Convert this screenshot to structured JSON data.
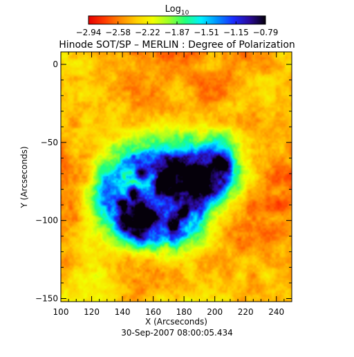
{
  "chart_data": {
    "type": "heatmap",
    "title": "Hinode SOT/SP – MERLIN : Degree of Polarization",
    "xlabel": "X (Arcseconds)",
    "ylabel": "Y (Arcseconds)",
    "xlim": [
      100,
      250
    ],
    "ylim": [
      -152,
      8
    ],
    "x_ticks": [
      "100",
      "120",
      "140",
      "160",
      "180",
      "200",
      "220",
      "240"
    ],
    "y_ticks": [
      "0",
      "−50",
      "−100",
      "−150"
    ],
    "colorbar": {
      "label_base": "Log",
      "label_sub": "10",
      "ticks": [
        "−2.94",
        "−2.58",
        "−2.22",
        "−1.87",
        "−1.51",
        "−1.15",
        "−0.79"
      ],
      "range": [
        -2.94,
        -0.79
      ],
      "colormap": [
        "#e60000",
        "#ff3a00",
        "#ff8a00",
        "#ffd000",
        "#f2ff00",
        "#9aff2a",
        "#22ff7a",
        "#00f0ff",
        "#0090ff",
        "#1a2cff",
        "#2a0a9a",
        "#05000a"
      ]
    },
    "concentrations": [
      {
        "x": 190.0,
        "y": -72.0,
        "strength": 1.0
      },
      {
        "x": 153.0,
        "y": -70.0,
        "strength": 0.85
      },
      {
        "x": 165.0,
        "y": -76.0,
        "strength": 0.7
      },
      {
        "x": 147.0,
        "y": -82.0,
        "strength": 0.8
      },
      {
        "x": 155.0,
        "y": -98.0,
        "strength": 0.85
      },
      {
        "x": 172.0,
        "y": -103.0,
        "strength": 0.6
      },
      {
        "x": 180.0,
        "y": -95.0,
        "strength": 0.6
      },
      {
        "x": 205.0,
        "y": -64.0,
        "strength": 0.55
      },
      {
        "x": 140.0,
        "y": -88.0,
        "strength": 0.5
      }
    ],
    "timestamp": "30-Sep-2007 08:00:05.434"
  }
}
